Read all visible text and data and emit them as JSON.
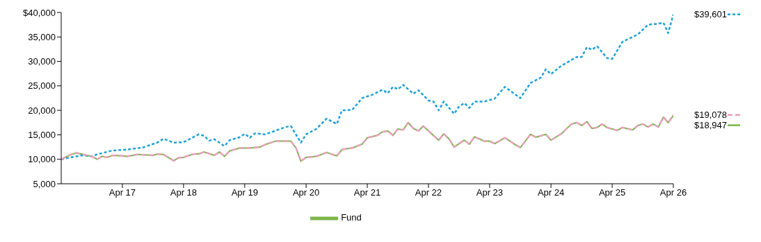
{
  "chart_data": {
    "type": "line",
    "ylim": [
      5000,
      40000
    ],
    "yticks": [
      {
        "value": 5000,
        "label": "5,000"
      },
      {
        "value": 10000,
        "label": "10,000"
      },
      {
        "value": 15000,
        "label": "15,000"
      },
      {
        "value": 20000,
        "label": "20,000"
      },
      {
        "value": 25000,
        "label": "25,000"
      },
      {
        "value": 30000,
        "label": "30,000"
      },
      {
        "value": 35000,
        "label": "35,000"
      },
      {
        "value": 40000,
        "label": "$40,000"
      }
    ],
    "xlim": [
      "2016-04",
      "2026-04"
    ],
    "xticks": [
      {
        "value": "2017-04",
        "label": "Apr 17"
      },
      {
        "value": "2018-04",
        "label": "Apr 18"
      },
      {
        "value": "2019-04",
        "label": "Apr 19"
      },
      {
        "value": "2020-04",
        "label": "Apr 20"
      },
      {
        "value": "2021-04",
        "label": "Apr 21"
      },
      {
        "value": "2022-04",
        "label": "Apr 22"
      },
      {
        "value": "2023-04",
        "label": "Apr 23"
      },
      {
        "value": "2024-04",
        "label": "Apr 24"
      },
      {
        "value": "2025-04",
        "label": "Apr 25"
      },
      {
        "value": "2026-04",
        "label": "Apr 26"
      }
    ],
    "grid": false,
    "legend": "bottom",
    "marker": "none",
    "series": [
      {
        "name": "Fund",
        "color": "#7ab648",
        "line_style": "solid",
        "x": [
          "2016-04",
          "2016-06",
          "2016-07",
          "2016-09",
          "2016-10",
          "2016-11",
          "2016-12",
          "2017-01",
          "2017-02",
          "2017-04",
          "2017-05",
          "2017-07",
          "2017-10",
          "2017-11",
          "2017-12",
          "2018-02",
          "2018-03",
          "2018-04",
          "2018-06",
          "2018-07",
          "2018-08",
          "2018-10",
          "2018-11",
          "2018-12",
          "2019-01",
          "2019-03",
          "2019-05",
          "2019-07",
          "2019-08",
          "2019-10",
          "2020-01",
          "2020-02",
          "2020-03",
          "2020-04",
          "2020-06",
          "2020-08",
          "2020-10",
          "2020-11",
          "2021-01",
          "2021-03",
          "2021-04",
          "2021-06",
          "2021-07",
          "2021-08",
          "2021-09",
          "2021-10",
          "2021-11",
          "2021-12",
          "2022-01",
          "2022-02",
          "2022-03",
          "2022-04",
          "2022-06",
          "2022-07",
          "2022-08",
          "2022-09",
          "2022-10",
          "2022-11",
          "2022-12",
          "2023-01",
          "2023-03",
          "2023-04",
          "2023-05",
          "2023-07",
          "2023-09",
          "2023-10",
          "2023-12",
          "2024-01",
          "2024-03",
          "2024-04",
          "2024-06",
          "2024-08",
          "2024-09",
          "2024-10",
          "2024-11",
          "2024-12",
          "2025-01",
          "2025-02",
          "2025-03",
          "2025-05",
          "2025-06",
          "2025-08",
          "2025-09",
          "2025-10",
          "2025-11",
          "2025-12",
          "2026-01",
          "2026-02",
          "2026-03",
          "2026-04"
        ],
        "values": [
          10000,
          11000,
          11300,
          10800,
          10600,
          10000,
          10600,
          10400,
          10800,
          10700,
          10600,
          11000,
          10800,
          11100,
          11000,
          9700,
          10300,
          10400,
          11100,
          11100,
          11500,
          10800,
          11500,
          10600,
          11700,
          12300,
          12300,
          12500,
          13000,
          13700,
          13700,
          12300,
          9600,
          10400,
          10600,
          11400,
          10700,
          12000,
          12300,
          13100,
          14400,
          14900,
          15600,
          15800,
          14900,
          16200,
          16000,
          17500,
          16300,
          15800,
          16800,
          15800,
          13900,
          15200,
          14200,
          12500,
          13200,
          13900,
          13100,
          14600,
          13700,
          13700,
          13200,
          14400,
          13000,
          12400,
          15100,
          14500,
          15100,
          13900,
          15200,
          17200,
          17500,
          16900,
          17700,
          16300,
          16500,
          17200,
          16500,
          15900,
          16500,
          16000,
          16900,
          17200,
          16600,
          17200,
          16600,
          18600,
          17500,
          18947
        ]
      },
      {
        "color": "#1ba1d8",
        "line_style": "dotted",
        "x": [
          "2016-04",
          "2016-08",
          "2016-10",
          "2016-11",
          "2017-02",
          "2017-05",
          "2017-08",
          "2017-11",
          "2017-12",
          "2018-02",
          "2018-04",
          "2018-07",
          "2018-08",
          "2018-09",
          "2018-10",
          "2018-12",
          "2019-01",
          "2019-03",
          "2019-04",
          "2019-05",
          "2019-06",
          "2019-07",
          "2019-08",
          "2019-12",
          "2020-01",
          "2020-03",
          "2020-04",
          "2020-06",
          "2020-08",
          "2020-10",
          "2020-11",
          "2021-01",
          "2021-03",
          "2021-05",
          "2021-07",
          "2021-08",
          "2021-09",
          "2021-10",
          "2021-11",
          "2022-01",
          "2022-02",
          "2022-04",
          "2022-05",
          "2022-06",
          "2022-07",
          "2022-09",
          "2022-10",
          "2022-11",
          "2022-12",
          "2023-01",
          "2023-03",
          "2023-05",
          "2023-07",
          "2023-10",
          "2023-12",
          "2024-02",
          "2024-03",
          "2024-04",
          "2024-06",
          "2024-09",
          "2024-10",
          "2024-11",
          "2024-12",
          "2025-01",
          "2025-03",
          "2025-04",
          "2025-06",
          "2025-09",
          "2025-11",
          "2026-01",
          "2026-02",
          "2026-03",
          "2026-04"
        ],
        "values": [
          10000,
          10800,
          10600,
          11000,
          11800,
          12000,
          12400,
          13500,
          14200,
          13400,
          13500,
          15100,
          14800,
          13800,
          14100,
          12700,
          13900,
          14500,
          15200,
          14400,
          15300,
          15200,
          15100,
          16600,
          16800,
          13400,
          15100,
          16200,
          18300,
          17200,
          20000,
          20100,
          22500,
          23200,
          24200,
          23500,
          24800,
          24300,
          25200,
          23400,
          24100,
          22000,
          21800,
          20000,
          21800,
          19300,
          20800,
          21500,
          20500,
          21800,
          21800,
          22400,
          24800,
          22500,
          25600,
          26700,
          28400,
          27400,
          29100,
          30900,
          30900,
          32900,
          32400,
          33100,
          30700,
          30500,
          34000,
          35500,
          37500,
          37700,
          37900,
          35800,
          39601
        ]
      },
      {
        "color": "#e8a0bb",
        "line_style": "dashed",
        "x": [
          "2016-04",
          "2016-06",
          "2016-07",
          "2016-09",
          "2016-10",
          "2016-11",
          "2016-12",
          "2017-01",
          "2017-02",
          "2017-04",
          "2017-05",
          "2017-07",
          "2017-10",
          "2017-11",
          "2017-12",
          "2018-02",
          "2018-03",
          "2018-04",
          "2018-06",
          "2018-07",
          "2018-08",
          "2018-10",
          "2018-11",
          "2018-12",
          "2019-01",
          "2019-03",
          "2019-05",
          "2019-07",
          "2019-08",
          "2019-10",
          "2020-01",
          "2020-02",
          "2020-03",
          "2020-04",
          "2020-06",
          "2020-08",
          "2020-10",
          "2020-11",
          "2021-01",
          "2021-03",
          "2021-04",
          "2021-06",
          "2021-07",
          "2021-08",
          "2021-09",
          "2021-10",
          "2021-11",
          "2021-12",
          "2022-01",
          "2022-02",
          "2022-03",
          "2022-04",
          "2022-06",
          "2022-07",
          "2022-08",
          "2022-09",
          "2022-10",
          "2022-11",
          "2022-12",
          "2023-01",
          "2023-03",
          "2023-04",
          "2023-05",
          "2023-07",
          "2023-09",
          "2023-10",
          "2023-12",
          "2024-01",
          "2024-03",
          "2024-04",
          "2024-06",
          "2024-08",
          "2024-09",
          "2024-10",
          "2024-11",
          "2024-12",
          "2025-01",
          "2025-02",
          "2025-03",
          "2025-05",
          "2025-06",
          "2025-08",
          "2025-09",
          "2025-10",
          "2025-11",
          "2025-12",
          "2026-01",
          "2026-02",
          "2026-03",
          "2026-04"
        ],
        "values": [
          10000,
          11000,
          11300,
          10800,
          10600,
          10000,
          10600,
          10400,
          10800,
          10700,
          10600,
          11000,
          10800,
          11100,
          11000,
          9700,
          10300,
          10400,
          11100,
          11100,
          11500,
          10800,
          11500,
          10600,
          11700,
          12300,
          12300,
          12500,
          13000,
          13700,
          13700,
          12300,
          9600,
          10400,
          10600,
          11400,
          10700,
          12000,
          12300,
          13100,
          14400,
          14900,
          15600,
          15800,
          14900,
          16200,
          16000,
          17500,
          16300,
          15800,
          16800,
          15800,
          13900,
          15200,
          14200,
          12500,
          13200,
          13900,
          13100,
          14600,
          13700,
          13700,
          13200,
          14400,
          13000,
          12400,
          15100,
          14500,
          15100,
          13900,
          15200,
          17200,
          17500,
          16900,
          17700,
          16300,
          16500,
          17200,
          16500,
          15900,
          16500,
          16000,
          16900,
          17200,
          16600,
          17200,
          16600,
          18600,
          17500,
          19078
        ]
      }
    ],
    "annotations": [
      {
        "text": "$39,601",
        "x": "2026-04",
        "y": 39601
      },
      {
        "text": "$19,078",
        "x": "2026-04",
        "y": 19078
      },
      {
        "text": "$18,947",
        "x": "2026-04",
        "y": 18947
      }
    ]
  }
}
